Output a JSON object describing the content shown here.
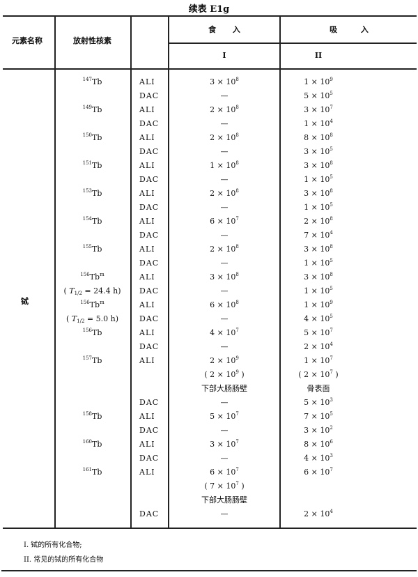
{
  "title": "续表 E1g",
  "header": {
    "element_name": "元素名称",
    "nuclide": "放射性核素",
    "ingestion": "食 入",
    "inhalation": "吸 入",
    "ingestion_class": "I",
    "inhalation_class": "II"
  },
  "element": "铽",
  "rows": [
    {
      "mass": "147",
      "sym": "Tb",
      "type": "ALI",
      "ing": "3 × 10^8",
      "inh": "1 × 10^9"
    },
    {
      "type": "DAC",
      "ing": "—",
      "inh": "5 × 10^5"
    },
    {
      "mass": "149",
      "sym": "Tb",
      "type": "ALI",
      "ing": "2 × 10^8",
      "inh": "3 × 10^7"
    },
    {
      "type": "DAC",
      "ing": "—",
      "inh": "1 × 10^4"
    },
    {
      "mass": "150",
      "sym": "Tb",
      "type": "ALI",
      "ing": "2 × 10^8",
      "inh": "8 × 10^8"
    },
    {
      "type": "DAC",
      "ing": "—",
      "inh": "3 × 10^5"
    },
    {
      "mass": "151",
      "sym": "Tb",
      "type": "ALI",
      "ing": "1 × 10^8",
      "inh": "3 × 10^8"
    },
    {
      "type": "DAC",
      "ing": "—",
      "inh": "1 × 10^5"
    },
    {
      "mass": "153",
      "sym": "Tb",
      "type": "ALI",
      "ing": "2 × 10^8",
      "inh": "3 × 10^8"
    },
    {
      "type": "DAC",
      "ing": "—",
      "inh": "1 × 10^5"
    },
    {
      "mass": "154",
      "sym": "Tb",
      "type": "ALI",
      "ing": "6 × 10^7",
      "inh": "2 × 10^8"
    },
    {
      "type": "DAC",
      "ing": "—",
      "inh": "7 × 10^4"
    },
    {
      "mass": "155",
      "sym": "Tb",
      "type": "ALI",
      "ing": "2 × 10^8",
      "inh": "3 × 10^8"
    },
    {
      "type": "DAC",
      "ing": "—",
      "inh": "1 × 10^5"
    },
    {
      "mass": "156",
      "sym": "Tb",
      "meta": "m",
      "type": "ALI",
      "ing": "3 × 10^8",
      "inh": "3 × 10^8"
    },
    {
      "half_life": "= 24.4 h",
      "type": "DAC",
      "ing": "—",
      "inh": "1 × 10^5"
    },
    {
      "mass": "156",
      "sym": "Tb",
      "meta": "m",
      "type": "ALI",
      "ing": "6 × 10^8",
      "inh": "1 × 10^9"
    },
    {
      "half_life": "= 5.0 h",
      "type": "DAC",
      "ing": "—",
      "inh": "4 × 10^5"
    },
    {
      "mass": "156",
      "sym": "Tb",
      "type": "ALI",
      "ing": "4 × 10^7",
      "inh": "5 × 10^7"
    },
    {
      "type": "DAC",
      "ing": "—",
      "inh": "2 × 10^4"
    },
    {
      "mass": "157",
      "sym": "Tb",
      "type": "ALI",
      "ing": "2 × 10^9",
      "inh": "1 × 10^7"
    },
    {
      "ing": "( 2 × 10^9 )",
      "inh": "( 2 × 10^7 )"
    },
    {
      "ing": "下部大肠肠壁",
      "inh": "骨表面"
    },
    {
      "type": "DAC",
      "ing": "—",
      "inh": "5 × 10^3"
    },
    {
      "mass": "158",
      "sym": "Tb",
      "type": "ALI",
      "ing": "5 × 10^7",
      "inh": "7 × 10^5"
    },
    {
      "type": "DAC",
      "ing": "—",
      "inh": "3 × 10^2"
    },
    {
      "mass": "160",
      "sym": "Tb",
      "type": "ALI",
      "ing": "3 × 10^7",
      "inh": "8 × 10^6"
    },
    {
      "type": "DAC",
      "ing": "—",
      "inh": "4 × 10^3"
    },
    {
      "mass": "161",
      "sym": "Tb",
      "type": "ALI",
      "ing": "6 × 10^7",
      "inh": "6 × 10^7"
    },
    {
      "ing": "( 7 × 10^7 )"
    },
    {
      "ing": "下部大肠肠壁"
    },
    {
      "type": "DAC",
      "ing": "—",
      "inh": "2 × 10^4"
    }
  ],
  "half_life_symbol": "T",
  "half_life_sub": "1/2",
  "notes": [
    "I. 铽的所有化合物;",
    "II. 常见的铽的所有化合物"
  ]
}
